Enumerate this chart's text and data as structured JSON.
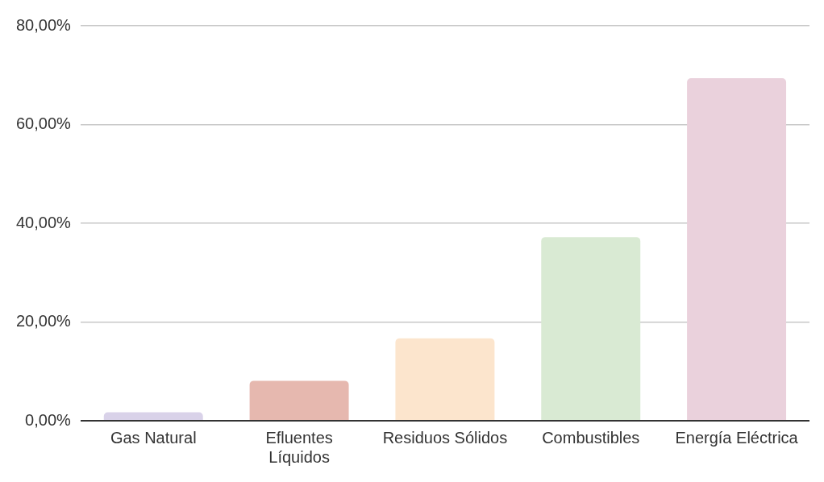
{
  "chart_data": {
    "type": "bar",
    "categories": [
      "Gas Natural",
      "Efluentes Líquidos",
      "Residuos Sólidos",
      "Combustibles",
      "Energía Eléctrica"
    ],
    "values": [
      1.7,
      8.1,
      16.7,
      37.2,
      69.4
    ],
    "colors": [
      "#d9d2e9",
      "#e6b8af",
      "#fce5cd",
      "#d9ead3",
      "#ead1dc"
    ],
    "ylim": [
      0,
      80
    ],
    "yticks": [
      {
        "value": 0,
        "label": "0,00%"
      },
      {
        "value": 20,
        "label": "20,00%"
      },
      {
        "value": 40,
        "label": "40,00%"
      },
      {
        "value": 60,
        "label": "60,00%"
      },
      {
        "value": 80,
        "label": "80,00%"
      }
    ],
    "grid": "y",
    "legend": false
  }
}
